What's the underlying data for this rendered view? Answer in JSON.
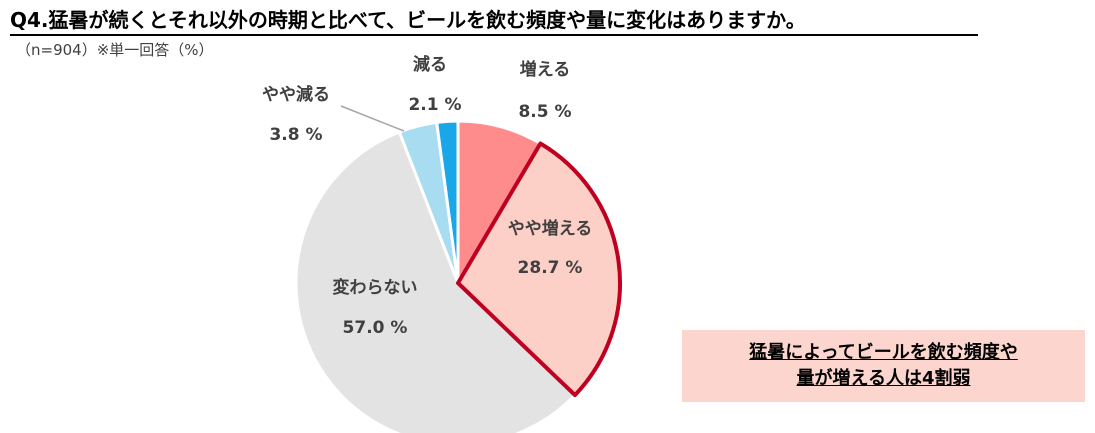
{
  "title": "Q4.猛暑が続くとそれ以外の時期と比べて、ビールを飲む頻度や量に変化はありますか。",
  "subtitle": "（n=904）※単一回答（%）",
  "callout": {
    "line1": "猛暑によってビールを飲む頻度や",
    "line2": "量が増える人は4割弱"
  },
  "chart_data": {
    "type": "pie",
    "unit": "%",
    "start_angle_deg": 0,
    "direction": "clockwise",
    "slices": [
      {
        "label": "増える",
        "value": 8.5,
        "display": "8.5 %",
        "color": "#ff8c8c",
        "highlight": false
      },
      {
        "label": "やや増える",
        "value": 28.7,
        "display": "28.7 %",
        "color": "#fdd0c7",
        "highlight": true
      },
      {
        "label": "変わらない",
        "value": 57.0,
        "display": "57.0 %",
        "color": "#e3e3e3",
        "highlight": false
      },
      {
        "label": "やや減る",
        "value": 3.8,
        "display": "3.8 %",
        "color": "#a8dcf0",
        "highlight": false
      },
      {
        "label": "減る",
        "value": 2.1,
        "display": "2.1 %",
        "color": "#1aa7e8",
        "highlight": false
      }
    ],
    "highlight_outline_color": "#c00020",
    "leader_line_color": "#a6a6a6"
  }
}
